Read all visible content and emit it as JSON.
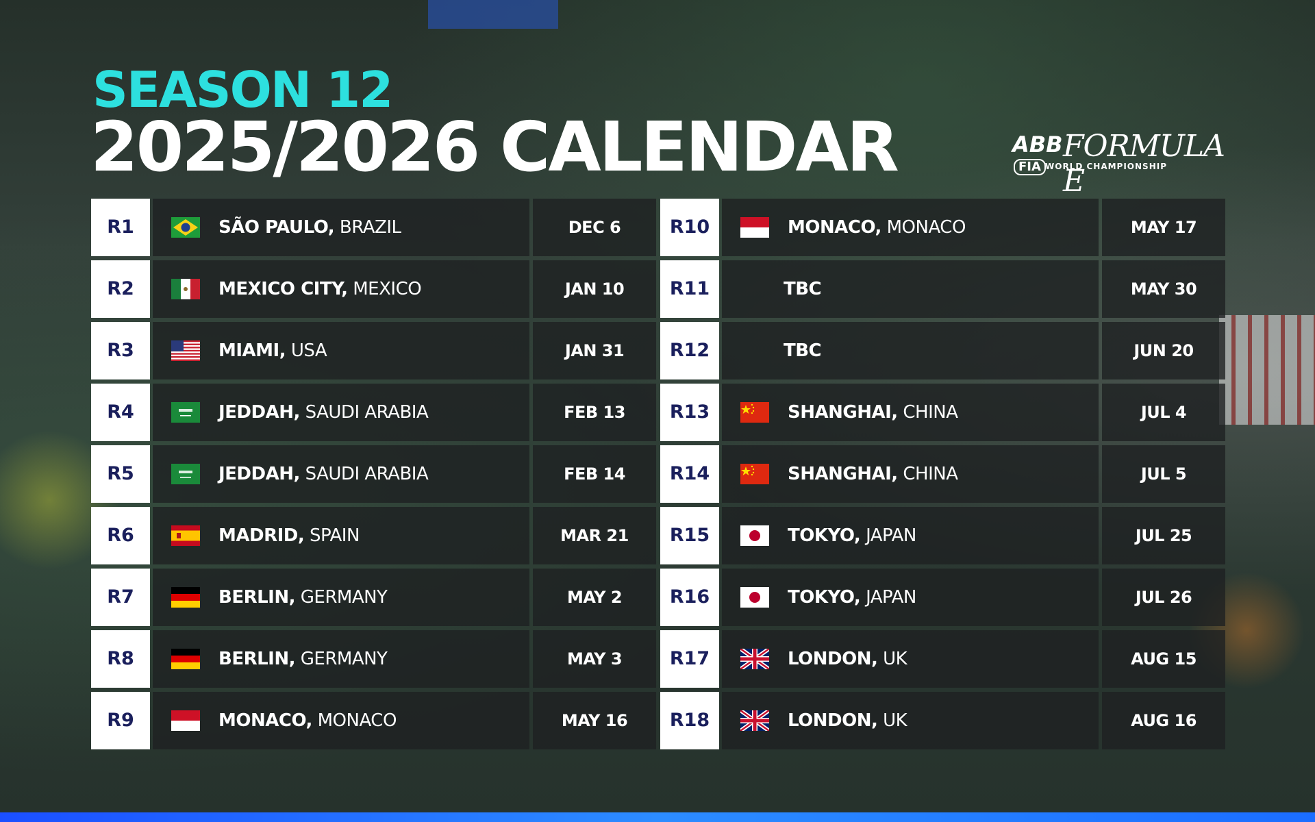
{
  "header": {
    "season": "SEASON 12",
    "title": "2025/2026 CALENDAR"
  },
  "logo": {
    "abb": "ABB",
    "formula_e": "FORMULA E",
    "fia": "FIA",
    "world_championship": "WORLD CHAMPIONSHIP"
  },
  "colors": {
    "accent": "#2de0df",
    "round_text": "#1a1f5c",
    "bottom_stripe": "#1b6dff"
  },
  "rounds": [
    {
      "round": "R1",
      "flag": "brazil-flag",
      "city": "SÃO PAULO,",
      "country": "BRAZIL",
      "date": "DEC 6"
    },
    {
      "round": "R2",
      "flag": "mexico-flag",
      "city": "MEXICO CITY,",
      "country": "MEXICO",
      "date": "JAN 10"
    },
    {
      "round": "R3",
      "flag": "usa-flag",
      "city": "MIAMI,",
      "country": "USA",
      "date": "JAN 31"
    },
    {
      "round": "R4",
      "flag": "saudi-arabia-flag",
      "city": "JEDDAH,",
      "country": "SAUDI ARABIA",
      "date": "FEB 13"
    },
    {
      "round": "R5",
      "flag": "saudi-arabia-flag",
      "city": "JEDDAH,",
      "country": "SAUDI ARABIA",
      "date": "FEB 14"
    },
    {
      "round": "R6",
      "flag": "spain-flag",
      "city": "MADRID,",
      "country": "SPAIN",
      "date": "MAR 21"
    },
    {
      "round": "R7",
      "flag": "germany-flag",
      "city": "BERLIN,",
      "country": "GERMANY",
      "date": "MAY 2"
    },
    {
      "round": "R8",
      "flag": "germany-flag",
      "city": "BERLIN,",
      "country": "GERMANY",
      "date": "MAY 3"
    },
    {
      "round": "R9",
      "flag": "monaco-flag",
      "city": "MONACO,",
      "country": "MONACO",
      "date": "MAY 16"
    },
    {
      "round": "R10",
      "flag": "monaco-flag",
      "city": "MONACO,",
      "country": "MONACO",
      "date": "MAY 17"
    },
    {
      "round": "R11",
      "flag": "",
      "city": "TBC",
      "country": "",
      "date": "MAY 30"
    },
    {
      "round": "R12",
      "flag": "",
      "city": "TBC",
      "country": "",
      "date": "JUN 20"
    },
    {
      "round": "R13",
      "flag": "china-flag",
      "city": "SHANGHAI,",
      "country": "CHINA",
      "date": "JUL 4"
    },
    {
      "round": "R14",
      "flag": "china-flag",
      "city": "SHANGHAI,",
      "country": "CHINA",
      "date": "JUL 5"
    },
    {
      "round": "R15",
      "flag": "japan-flag",
      "city": "TOKYO,",
      "country": "JAPAN",
      "date": "JUL 25"
    },
    {
      "round": "R16",
      "flag": "japan-flag",
      "city": "TOKYO,",
      "country": "JAPAN",
      "date": "JUL 26"
    },
    {
      "round": "R17",
      "flag": "uk-flag",
      "city": "LONDON,",
      "country": "UK",
      "date": "AUG 15"
    },
    {
      "round": "R18",
      "flag": "uk-flag",
      "city": "LONDON,",
      "country": "UK",
      "date": "AUG 16"
    }
  ]
}
